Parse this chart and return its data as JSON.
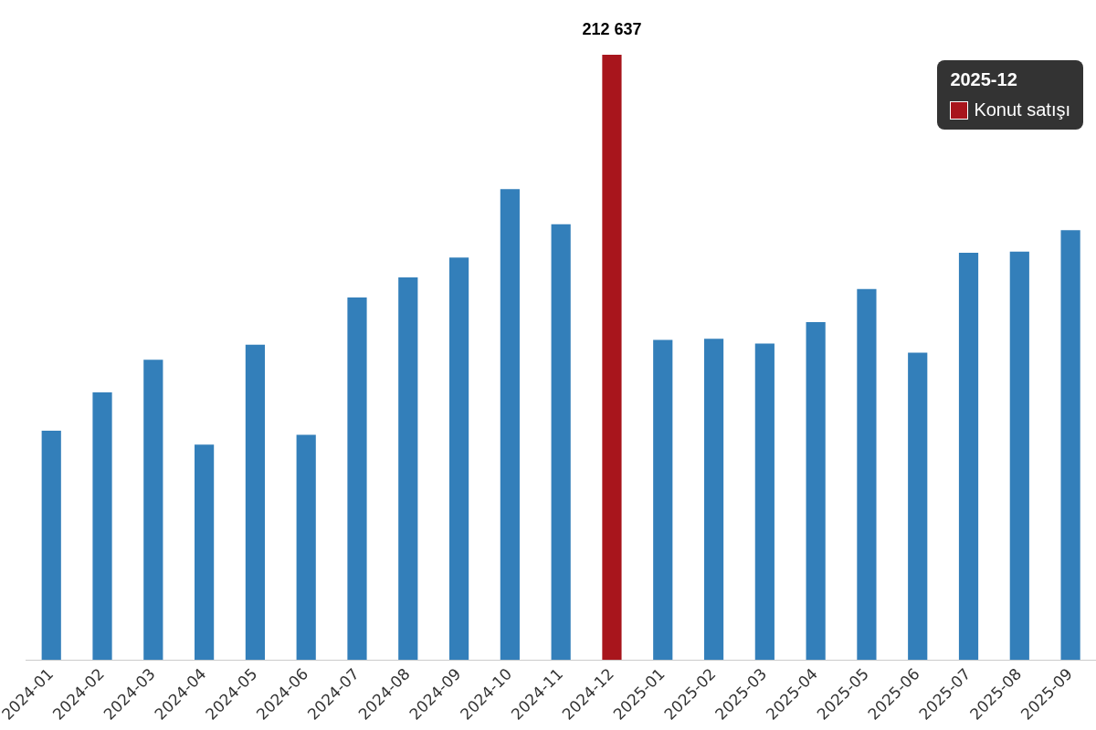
{
  "chart_data": {
    "type": "bar",
    "tick_labels": "x",
    "categories": [
      "2024-01",
      "2024-02",
      "2024-03",
      "2024-04",
      "2024-05",
      "2024-06",
      "2024-07",
      "2024-08",
      "2024-09",
      "2024-10",
      "2024-11",
      "2024-12",
      "2025-01",
      "2025-02",
      "2025-03",
      "2025-04",
      "2025-05",
      "2025-06",
      "2025-07",
      "2025-08",
      "2025-09"
    ],
    "values": [
      80600,
      94000,
      105500,
      75700,
      110800,
      79100,
      127400,
      134400,
      141400,
      165400,
      153100,
      212637,
      112500,
      112900,
      111200,
      118700,
      130300,
      108000,
      143100,
      143500,
      151000
    ],
    "colors": [
      "#337fba",
      "#337fba",
      "#337fba",
      "#337fba",
      "#337fba",
      "#337fba",
      "#337fba",
      "#337fba",
      "#337fba",
      "#337fba",
      "#337fba",
      "#a8151c",
      "#337fba",
      "#337fba",
      "#337fba",
      "#337fba",
      "#337fba",
      "#337fba",
      "#337fba",
      "#337fba",
      "#337fba"
    ],
    "value_labels": [
      null,
      null,
      null,
      null,
      null,
      null,
      null,
      null,
      null,
      null,
      null,
      "212 637",
      null,
      null,
      null,
      null,
      null,
      null,
      null,
      null,
      null
    ],
    "annotations": [
      "2025-12",
      "Konut satışı"
    ],
    "grid": false,
    "legend": false
  }
}
